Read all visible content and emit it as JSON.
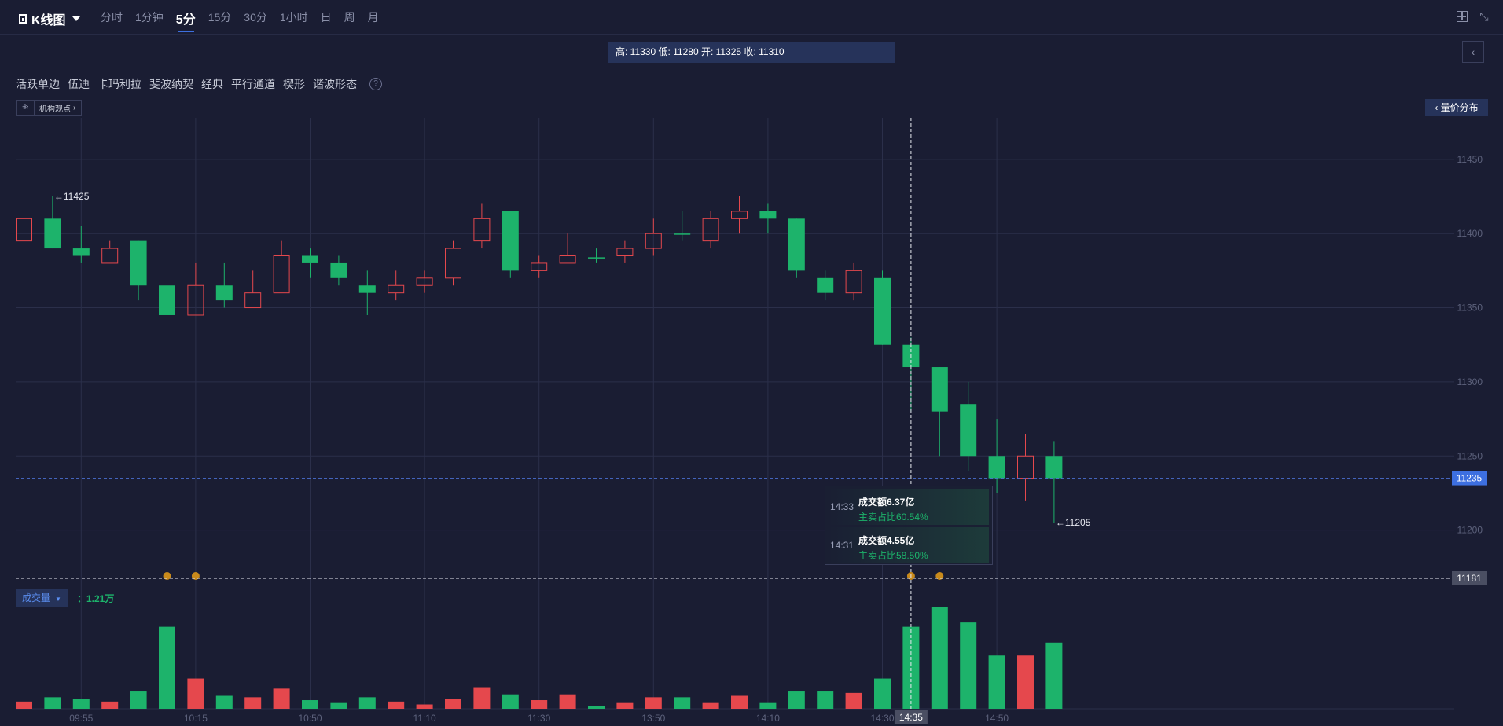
{
  "toolbar": {
    "title": "K线图",
    "periods": [
      "分时",
      "1分钟",
      "5分",
      "15分",
      "30分",
      "1小时",
      "日",
      "周",
      "月"
    ],
    "active_period": "5分"
  },
  "ohlc_info": "高: 11330 低: 11280 开: 11325 收: 11310",
  "patterns": [
    "活跃单边",
    "伍迪",
    "卡玛利拉",
    "斐波纳契",
    "经典",
    "平行通道",
    "楔形",
    "谐波形态"
  ],
  "institution_button": "机构观点",
  "volume_profile_button": "量价分布",
  "volume_indicator": {
    "label": "成交量",
    "value": "：1.21万"
  },
  "tooltip": [
    {
      "time": "14:33",
      "amount": "成交额6.37亿",
      "ratio": "主卖占比60.54%"
    },
    {
      "time": "14:31",
      "amount": "成交额4.55亿",
      "ratio": "主卖占比58.50%"
    }
  ],
  "colors": {
    "up": "#e5484d",
    "down": "#1db36b",
    "background": "#1a1d33",
    "accent": "#3d6fe0"
  },
  "chart_data": {
    "type": "candlestick",
    "y_ticks": [
      11450,
      11400,
      11350,
      11300,
      11250,
      11200
    ],
    "ylim": [
      11168,
      11478
    ],
    "x_tick_labels": [
      "09:55",
      "10:15",
      "10:50",
      "11:10",
      "11:30",
      "13:50",
      "14:10",
      "14:30",
      "14:50"
    ],
    "x_tick_index": [
      2,
      6,
      10,
      14,
      18,
      22,
      26,
      30,
      34
    ],
    "candles": [
      {
        "open": 11395,
        "close": 11410,
        "high": 11410,
        "low": 11395
      },
      {
        "open": 11410,
        "close": 11390,
        "high": 11425,
        "low": 11390
      },
      {
        "open": 11390,
        "close": 11385,
        "high": 11405,
        "low": 11380
      },
      {
        "open": 11380,
        "close": 11390,
        "high": 11395,
        "low": 11380
      },
      {
        "open": 11395,
        "close": 11365,
        "high": 11395,
        "low": 11355
      },
      {
        "open": 11365,
        "close": 11345,
        "high": 11365,
        "low": 11300
      },
      {
        "open": 11345,
        "close": 11365,
        "high": 11380,
        "low": 11345
      },
      {
        "open": 11365,
        "close": 11355,
        "high": 11380,
        "low": 11350
      },
      {
        "open": 11350,
        "close": 11360,
        "high": 11375,
        "low": 11350
      },
      {
        "open": 11360,
        "close": 11385,
        "high": 11395,
        "low": 11360
      },
      {
        "open": 11385,
        "close": 11380,
        "high": 11390,
        "low": 11370
      },
      {
        "open": 11380,
        "close": 11370,
        "high": 11385,
        "low": 11365
      },
      {
        "open": 11365,
        "close": 11360,
        "high": 11375,
        "low": 11345
      },
      {
        "open": 11360,
        "close": 11365,
        "high": 11375,
        "low": 11355
      },
      {
        "open": 11365,
        "close": 11370,
        "high": 11375,
        "low": 11360
      },
      {
        "open": 11370,
        "close": 11390,
        "high": 11395,
        "low": 11365
      },
      {
        "open": 11395,
        "close": 11410,
        "high": 11420,
        "low": 11390
      },
      {
        "open": 11415,
        "close": 11375,
        "high": 11415,
        "low": 11370
      },
      {
        "open": 11375,
        "close": 11380,
        "high": 11385,
        "low": 11370
      },
      {
        "open": 11380,
        "close": 11385,
        "high": 11400,
        "low": 11380
      },
      {
        "open": 11384,
        "close": 11384,
        "high": 11390,
        "low": 11380
      },
      {
        "open": 11385,
        "close": 11390,
        "high": 11395,
        "low": 11380
      },
      {
        "open": 11390,
        "close": 11400,
        "high": 11410,
        "low": 11385
      },
      {
        "open": 11400,
        "close": 11400,
        "high": 11415,
        "low": 11395
      },
      {
        "open": 11395,
        "close": 11410,
        "high": 11415,
        "low": 11390
      },
      {
        "open": 11410,
        "close": 11415,
        "high": 11425,
        "low": 11400
      },
      {
        "open": 11415,
        "close": 11410,
        "high": 11420,
        "low": 11400
      },
      {
        "open": 11410,
        "close": 11375,
        "high": 11410,
        "low": 11370
      },
      {
        "open": 11370,
        "close": 11360,
        "high": 11375,
        "low": 11355
      },
      {
        "open": 11360,
        "close": 11375,
        "high": 11380,
        "low": 11355
      },
      {
        "open": 11370,
        "close": 11325,
        "high": 11375,
        "low": 11325
      },
      {
        "open": 11325,
        "close": 11310,
        "high": 11330,
        "low": 11280
      },
      {
        "open": 11310,
        "close": 11280,
        "high": 11310,
        "low": 11250
      },
      {
        "open": 11285,
        "close": 11250,
        "high": 11300,
        "low": 11240
      },
      {
        "open": 11250,
        "close": 11235,
        "high": 11275,
        "low": 11225
      },
      {
        "open": 11235,
        "close": 11250,
        "high": 11265,
        "low": 11220
      },
      {
        "open": 11250,
        "close": 11235,
        "high": 11260,
        "low": 11205
      }
    ],
    "volume": [
      5,
      8,
      7,
      5,
      12,
      57,
      21,
      9,
      8,
      14,
      6,
      4,
      8,
      5,
      3,
      7,
      15,
      10,
      6,
      10,
      2,
      4,
      8,
      8,
      4,
      9,
      4,
      12,
      12,
      11,
      21,
      57,
      71,
      60,
      37,
      37,
      46
    ],
    "high_label": "11425",
    "low_label": "11205",
    "price_line": {
      "value": 11235,
      "label": "11235"
    },
    "crosshair": {
      "candle_index": 31,
      "price_label": "11181",
      "time_label": "14:35"
    },
    "markers": [
      5,
      6,
      31,
      32
    ]
  }
}
